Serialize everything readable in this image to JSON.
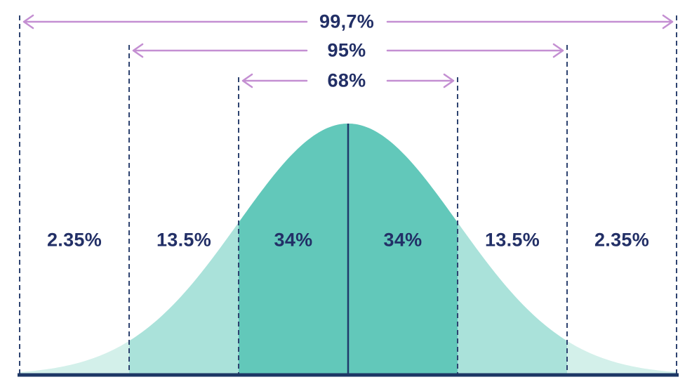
{
  "chart_data": {
    "type": "area",
    "distribution": "normal-bell-curve",
    "grid": false,
    "legend": "none",
    "coverage_intervals": [
      {
        "label": "99,7%",
        "value": 99.7,
        "sigma_range": [
          -3,
          3
        ]
      },
      {
        "label": "95%",
        "value": 95,
        "sigma_range": [
          -2,
          2
        ]
      },
      {
        "label": "68%",
        "value": 68,
        "sigma_range": [
          -1,
          1
        ]
      }
    ],
    "regions": [
      {
        "label": "2.35%",
        "value": 2.35,
        "sigma_from": -3,
        "sigma_to": -2
      },
      {
        "label": "13.5%",
        "value": 13.5,
        "sigma_from": -2,
        "sigma_to": -1
      },
      {
        "label": "34%",
        "value": 34,
        "sigma_from": -1,
        "sigma_to": 0
      },
      {
        "label": "34%",
        "value": 34,
        "sigma_from": 0,
        "sigma_to": 1
      },
      {
        "label": "13.5%",
        "value": 13.5,
        "sigma_from": 1,
        "sigma_to": 2
      },
      {
        "label": "2.35%",
        "value": 2.35,
        "sigma_from": 2,
        "sigma_to": 3
      }
    ],
    "colors": {
      "area_68": "#62c8ba",
      "area_95": "#aae2da",
      "area_99_7": "#d3f0ea",
      "arrow": "#c48fd2",
      "label_text": "#222f66",
      "guide_line": "#2e4370",
      "mean_line": "#1f3a6b",
      "baseline": "#1d3765"
    }
  }
}
